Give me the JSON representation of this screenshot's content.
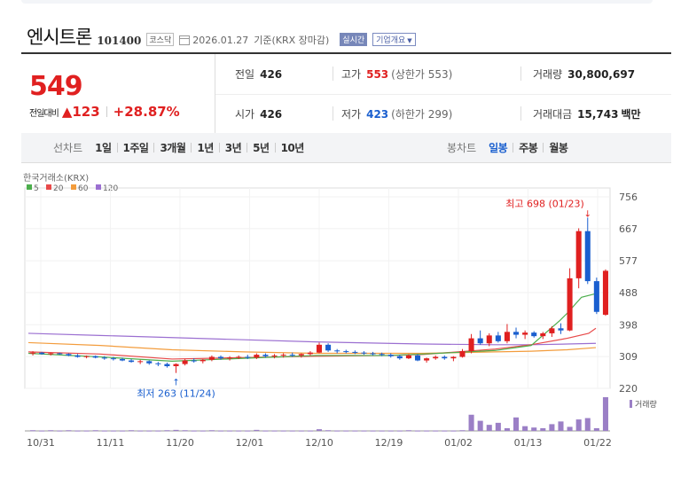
{
  "header": {
    "name": "엔시트론",
    "code": "101400",
    "market": "코스닥",
    "date": "2026.01.27",
    "basis": "기준(KRX 장마감)",
    "realtime_btn": "실시간",
    "company_btn": "기업개요"
  },
  "summary": {
    "price": "549",
    "change_label": "전일대비",
    "change_amount": "▲123",
    "change_rate": "+28.87%",
    "prev_label": "전일",
    "prev_value": "426",
    "high_label": "고가",
    "high_value": "553",
    "upper_limit": "(상한가 553)",
    "volume_label": "거래량",
    "volume_value": "30,800,697",
    "open_label": "시가",
    "open_value": "426",
    "low_label": "저가",
    "low_value": "423",
    "lower_limit": "(하한가 299)",
    "amount_label": "거래대금",
    "amount_value": "15,743",
    "amount_unit": "백만"
  },
  "tabs": {
    "line_title": "선차트",
    "line_items": [
      "1일",
      "1주일",
      "3개월",
      "1년",
      "3년",
      "5년",
      "10년"
    ],
    "candle_title": "봉차트",
    "candle_items": [
      "일봉",
      "주봉",
      "월봉"
    ],
    "active_candle": "일봉"
  },
  "chart_data": {
    "type": "candlestick",
    "source_label": "한국거래소(KRX)",
    "ma_legend": [
      {
        "name": "5",
        "color": "#4cae4c"
      },
      {
        "name": "20",
        "color": "#e84a4a"
      },
      {
        "name": "60",
        "color": "#f39c3c"
      },
      {
        "name": "120",
        "color": "#9b6fd1"
      }
    ],
    "y_ticks": [
      756,
      667,
      577,
      488,
      398,
      309,
      220
    ],
    "ylim": [
      220,
      756
    ],
    "x_ticks": [
      "10/31",
      "11/11",
      "11/20",
      "12/01",
      "12/10",
      "12/19",
      "01/02",
      "01/13",
      "01/22"
    ],
    "max_annotation": "최고 698 (01/23)",
    "min_annotation": "최저 263 (11/24)",
    "volume_label": "거래량",
    "up_color": "#e02020",
    "down_color": "#1a5fcf",
    "candles": [
      [
        318,
        324,
        312,
        320
      ],
      [
        320,
        322,
        314,
        316
      ],
      [
        316,
        320,
        312,
        318
      ],
      [
        318,
        320,
        314,
        316
      ],
      [
        316,
        318,
        310,
        312
      ],
      [
        312,
        316,
        306,
        308
      ],
      [
        308,
        312,
        304,
        310
      ],
      [
        310,
        312,
        304,
        306
      ],
      [
        306,
        310,
        300,
        304
      ],
      [
        304,
        308,
        298,
        302
      ],
      [
        302,
        306,
        296,
        298
      ],
      [
        298,
        302,
        292,
        294
      ],
      [
        294,
        300,
        288,
        296
      ],
      [
        296,
        298,
        286,
        290
      ],
      [
        290,
        294,
        282,
        288
      ],
      [
        288,
        292,
        278,
        282
      ],
      [
        282,
        290,
        263,
        288
      ],
      [
        288,
        302,
        284,
        298
      ],
      [
        298,
        304,
        292,
        296
      ],
      [
        296,
        302,
        290,
        300
      ],
      [
        300,
        312,
        296,
        308
      ],
      [
        308,
        312,
        300,
        304
      ],
      [
        304,
        310,
        298,
        306
      ],
      [
        306,
        312,
        302,
        308
      ],
      [
        308,
        314,
        302,
        306
      ],
      [
        306,
        318,
        302,
        314
      ],
      [
        314,
        318,
        306,
        310
      ],
      [
        310,
        316,
        304,
        312
      ],
      [
        312,
        318,
        306,
        314
      ],
      [
        314,
        320,
        308,
        312
      ],
      [
        312,
        318,
        306,
        316
      ],
      [
        316,
        324,
        312,
        320
      ],
      [
        320,
        348,
        318,
        342
      ],
      [
        342,
        346,
        322,
        326
      ],
      [
        326,
        330,
        318,
        324
      ],
      [
        324,
        328,
        318,
        322
      ],
      [
        322,
        326,
        316,
        320
      ],
      [
        320,
        324,
        314,
        318
      ],
      [
        318,
        322,
        312,
        316
      ],
      [
        316,
        320,
        310,
        314
      ],
      [
        314,
        318,
        306,
        310
      ],
      [
        310,
        314,
        300,
        304
      ],
      [
        304,
        316,
        302,
        312
      ],
      [
        312,
        316,
        296,
        298
      ],
      [
        298,
        306,
        292,
        304
      ],
      [
        304,
        312,
        300,
        308
      ],
      [
        308,
        312,
        300,
        304
      ],
      [
        304,
        310,
        296,
        308
      ],
      [
        308,
        330,
        306,
        324
      ],
      [
        324,
        372,
        318,
        360
      ],
      [
        360,
        382,
        342,
        346
      ],
      [
        346,
        374,
        338,
        368
      ],
      [
        368,
        378,
        348,
        352
      ],
      [
        352,
        400,
        346,
        378
      ],
      [
        378,
        390,
        360,
        370
      ],
      [
        370,
        382,
        358,
        376
      ],
      [
        376,
        380,
        362,
        366
      ],
      [
        366,
        378,
        358,
        374
      ],
      [
        374,
        394,
        364,
        388
      ],
      [
        388,
        402,
        372,
        382
      ],
      [
        382,
        556,
        380,
        528
      ],
      [
        528,
        668,
        500,
        660
      ],
      [
        660,
        698,
        512,
        520
      ],
      [
        520,
        530,
        428,
        434
      ],
      [
        426,
        553,
        423,
        549
      ]
    ],
    "ma5": [
      [
        0,
        318
      ],
      [
        20,
        308
      ],
      [
        40,
        296
      ],
      [
        60,
        304
      ],
      [
        80,
        312
      ],
      [
        100,
        312
      ],
      [
        110,
        316
      ],
      [
        130,
        326
      ],
      [
        140,
        340
      ],
      [
        148,
        410
      ],
      [
        150,
        430
      ],
      [
        154,
        475
      ],
      [
        158,
        485
      ]
    ],
    "ma20": [
      [
        0,
        322
      ],
      [
        20,
        316
      ],
      [
        40,
        302
      ],
      [
        60,
        306
      ],
      [
        80,
        310
      ],
      [
        100,
        312
      ],
      [
        110,
        315
      ],
      [
        130,
        330
      ],
      [
        140,
        342
      ],
      [
        150,
        360
      ],
      [
        156,
        374
      ],
      [
        158,
        388
      ]
    ],
    "ma60": [
      [
        0,
        348
      ],
      [
        20,
        340
      ],
      [
        40,
        328
      ],
      [
        60,
        322
      ],
      [
        80,
        318
      ],
      [
        100,
        318
      ],
      [
        110,
        318
      ],
      [
        130,
        322
      ],
      [
        140,
        324
      ],
      [
        150,
        328
      ],
      [
        158,
        334
      ]
    ],
    "ma120": [
      [
        0,
        374
      ],
      [
        20,
        368
      ],
      [
        40,
        362
      ],
      [
        60,
        356
      ],
      [
        80,
        350
      ],
      [
        100,
        346
      ],
      [
        110,
        344
      ],
      [
        130,
        342
      ],
      [
        140,
        342
      ],
      [
        150,
        344
      ],
      [
        158,
        346
      ]
    ],
    "volume": [
      2,
      1,
      2,
      1,
      2,
      1,
      1,
      2,
      1,
      1,
      1,
      2,
      1,
      1,
      1,
      2,
      3,
      2,
      1,
      1,
      2,
      1,
      1,
      1,
      1,
      3,
      1,
      1,
      1,
      1,
      1,
      1,
      5,
      2,
      1,
      1,
      1,
      1,
      1,
      1,
      1,
      1,
      2,
      1,
      1,
      1,
      1,
      1,
      2,
      48,
      30,
      18,
      24,
      8,
      40,
      14,
      10,
      8,
      20,
      28,
      12,
      34,
      38,
      8,
      100
    ]
  }
}
